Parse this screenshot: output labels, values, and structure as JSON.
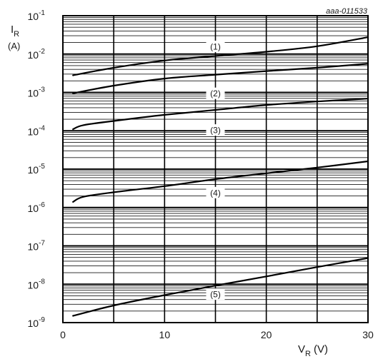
{
  "chart_data": {
    "type": "line",
    "code": "aaa-011533",
    "ylabel": {
      "main": "I",
      "sub": "R",
      "unit": "(A)"
    },
    "xlabel": {
      "main": "V",
      "sub": "R",
      "unit": "(V)"
    },
    "y_scale": "log",
    "ylim": [
      1e-09,
      0.1
    ],
    "xlim": [
      0,
      30
    ],
    "x_ticks": [
      0,
      10,
      20,
      30
    ],
    "x_tick_labels": [
      "0",
      "10",
      "20",
      "30"
    ],
    "y_ticks": [
      {
        "base": "10",
        "exp": "-1",
        "value": 0.1
      },
      {
        "base": "10",
        "exp": "-2",
        "value": 0.01
      },
      {
        "base": "10",
        "exp": "-3",
        "value": 0.001
      },
      {
        "base": "10",
        "exp": "-4",
        "value": 0.0001
      },
      {
        "base": "10",
        "exp": "-5",
        "value": 1e-05
      },
      {
        "base": "10",
        "exp": "-6",
        "value": 1e-06
      },
      {
        "base": "10",
        "exp": "-7",
        "value": 1e-07
      },
      {
        "base": "10",
        "exp": "-8",
        "value": 1e-08
      },
      {
        "base": "10",
        "exp": "-9",
        "value": 1e-09
      }
    ],
    "grid": true,
    "series": [
      {
        "label": "(1)",
        "label_at": {
          "x": 15,
          "y": 0.0158
        },
        "points": [
          [
            1,
            0.0028
          ],
          [
            5,
            0.0044
          ],
          [
            10,
            0.0068
          ],
          [
            15,
            0.0089
          ],
          [
            20,
            0.0115
          ],
          [
            25,
            0.016
          ],
          [
            30,
            0.0275
          ]
        ]
      },
      {
        "label": "(2)",
        "label_at": {
          "x": 15,
          "y": 0.00095
        },
        "points": [
          [
            1,
            0.00095
          ],
          [
            5,
            0.0015
          ],
          [
            10,
            0.0023
          ],
          [
            15,
            0.0029
          ],
          [
            20,
            0.0036
          ],
          [
            25,
            0.0044
          ],
          [
            30,
            0.0056
          ]
        ]
      },
      {
        "label": "(3)",
        "label_at": {
          "x": 15,
          "y": 0.000105
        },
        "points": [
          [
            1,
            0.00011
          ],
          [
            2,
            0.00014
          ],
          [
            5,
            0.00018
          ],
          [
            10,
            0.00026
          ],
          [
            15,
            0.00035
          ],
          [
            20,
            0.00047
          ],
          [
            25,
            0.00058
          ],
          [
            30,
            0.00069
          ]
        ]
      },
      {
        "label": "(4)",
        "label_at": {
          "x": 15,
          "y": 2.45e-06
        },
        "points": [
          [
            1,
            1.4e-06
          ],
          [
            2,
            1.9e-06
          ],
          [
            5,
            2.5e-06
          ],
          [
            10,
            3.6e-06
          ],
          [
            15,
            5.5e-06
          ],
          [
            20,
            7.8e-06
          ],
          [
            25,
            1.1e-05
          ],
          [
            30,
            1.6e-05
          ]
        ]
      },
      {
        "label": "(5)",
        "label_at": {
          "x": 15,
          "y": 5.5e-09
        },
        "points": [
          [
            1,
            1.5e-09
          ],
          [
            5,
            2.8e-09
          ],
          [
            10,
            5.2e-09
          ],
          [
            15,
            9.2e-09
          ],
          [
            20,
            1.6e-08
          ],
          [
            25,
            2.8e-08
          ],
          [
            30,
            4.8e-08
          ]
        ]
      }
    ]
  }
}
